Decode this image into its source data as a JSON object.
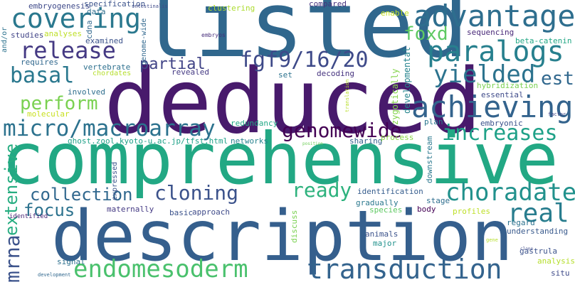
{
  "words": [
    {
      "key": "listed",
      "text": "listed",
      "color": "#30678d"
    },
    {
      "key": "deduced",
      "text": "deduced",
      "color": "#481a6c"
    },
    {
      "key": "comprehensive",
      "text": "comprehensive",
      "color": "#22a884"
    },
    {
      "key": "description",
      "text": "description",
      "color": "#355f8d"
    },
    {
      "key": "advantage",
      "text": "advantage",
      "color": "#2e6e8e"
    },
    {
      "key": "covering",
      "text": "covering",
      "color": "#2a788e"
    },
    {
      "key": "paralogs",
      "text": "paralogs",
      "color": "#27808e"
    },
    {
      "key": "release",
      "text": "release",
      "color": "#443983"
    },
    {
      "key": "fgf9-16-20",
      "text": "fgf9/16/20",
      "color": "#3e4a89"
    },
    {
      "key": "foxd",
      "text": "foxd",
      "color": "#5ec962"
    },
    {
      "key": "yielded",
      "text": "yielded",
      "color": "#2c738e"
    },
    {
      "key": "basal",
      "text": "basal",
      "color": "#2a788e"
    },
    {
      "key": "partial",
      "text": "partial",
      "color": "#414487"
    },
    {
      "key": "est",
      "text": "est",
      "color": "#31688e"
    },
    {
      "key": "achieving",
      "text": "achieving",
      "color": "#33638d"
    },
    {
      "key": "perform",
      "text": "perform",
      "color": "#7ad151"
    },
    {
      "key": "micro-macroarray",
      "text": "micro/macroarray",
      "color": "#2c728e"
    },
    {
      "key": "genomewide",
      "text": "genomewide",
      "color": "#440154"
    },
    {
      "key": "increases",
      "text": "increases",
      "color": "#1fa188"
    },
    {
      "key": "cloning",
      "text": "cloning",
      "color": "#3b528b"
    },
    {
      "key": "ready",
      "text": "ready",
      "color": "#2db27d"
    },
    {
      "key": "choradate",
      "text": "choradate",
      "color": "#21918c"
    },
    {
      "key": "collection",
      "text": "collection",
      "color": "#31688e"
    },
    {
      "key": "focus",
      "text": "focus",
      "color": "#2c728e"
    },
    {
      "key": "real",
      "text": "real",
      "color": "#287d8e"
    },
    {
      "key": "endomesoderm",
      "text": "endomesoderm",
      "color": "#4ac16d"
    },
    {
      "key": "transduction",
      "text": "transduction",
      "color": "#33638d"
    },
    {
      "key": "extensive",
      "text": "extensive",
      "color": "#27ad81"
    },
    {
      "key": "mrna",
      "text": "mrna",
      "color": "#3b528b"
    },
    {
      "key": "embryogenesis",
      "text": "embryogenesis",
      "color": "#3e4989"
    },
    {
      "key": "specification",
      "text": "specification",
      "color": "#3b528b"
    },
    {
      "key": "clustering",
      "text": "clustering",
      "color": "#addc30"
    },
    {
      "key": "compared",
      "text": "compared",
      "color": "#46327e"
    },
    {
      "key": "enable",
      "text": "enable",
      "color": "#c2df23"
    },
    {
      "key": "data",
      "text": "data",
      "color": "#2e6e8e"
    },
    {
      "key": "and-or",
      "text": "and/or",
      "color": "#2c728e"
    },
    {
      "key": "studies",
      "text": "studies",
      "color": "#414487"
    },
    {
      "key": "analyses",
      "text": "analyses",
      "color": "#bddf26"
    },
    {
      "key": "cdna",
      "text": "cdna",
      "color": "#31688e"
    },
    {
      "key": "genome-wide",
      "text": "genome-wide",
      "color": "#31688e"
    },
    {
      "key": "embryos",
      "text": "embryos",
      "color": "#472d7b"
    },
    {
      "key": "sequencing",
      "text": "sequencing",
      "color": "#482878"
    },
    {
      "key": "beta-catenin",
      "text": "beta-catenin",
      "color": "#22a785"
    },
    {
      "key": "examined",
      "text": "examined",
      "color": "#3b528b"
    },
    {
      "key": "requires",
      "text": "requires",
      "color": "#31688e"
    },
    {
      "key": "vertebrate",
      "text": "vertebrate",
      "color": "#2d708e"
    },
    {
      "key": "chordates",
      "text": "chordates",
      "color": "#b5de2b"
    },
    {
      "key": "revealed",
      "text": "revealed",
      "color": "#443983"
    },
    {
      "key": "set",
      "text": "set",
      "color": "#2c728e"
    },
    {
      "key": "decoding",
      "text": "decoding",
      "color": "#46337f"
    },
    {
      "key": "developmental",
      "text": "developmental",
      "color": "#25848e"
    },
    {
      "key": "zygotically",
      "text": "zygotically",
      "color": "#84d44b"
    },
    {
      "key": "translation",
      "text": "translation",
      "color": "#b8de29"
    },
    {
      "key": "hybridization",
      "text": "hybridization",
      "color": "#7ad151"
    },
    {
      "key": "essential",
      "text": "essential",
      "color": "#3e4a89"
    },
    {
      "key": "involved",
      "text": "involved",
      "color": "#2e6e8e"
    },
    {
      "key": "molecular",
      "text": "molecular",
      "color": "#c8e020"
    },
    {
      "key": "redundancy",
      "text": "redundancy",
      "color": "#22a785"
    },
    {
      "key": "embryonic",
      "text": "embryonic",
      "color": "#3b528b"
    },
    {
      "key": "factor",
      "text": "factor",
      "color": "#404588"
    },
    {
      "key": "ghost-url",
      "text": "ghost.zool.kyoto-u.ac.jp/tfst.html",
      "color": "#1fa188"
    },
    {
      "key": "networks",
      "text": "networks",
      "color": "#26828e"
    },
    {
      "key": "sharing",
      "text": "sharing",
      "color": "#34618d"
    },
    {
      "key": "process",
      "text": "process",
      "color": "#8bd646"
    },
    {
      "key": "position",
      "text": "position",
      "color": "#6ece58"
    },
    {
      "key": "plan",
      "text": "plan",
      "color": "#2a788e"
    },
    {
      "key": "downstream",
      "text": "downstream",
      "color": "#2a788e"
    },
    {
      "key": "expressed",
      "text": "expressed",
      "color": "#3b528b"
    },
    {
      "key": "identification",
      "text": "identification",
      "color": "#365d8d"
    },
    {
      "key": "stage",
      "text": "stage",
      "color": "#2e6e8e"
    },
    {
      "key": "gradually",
      "text": "gradually",
      "color": "#2a788e"
    },
    {
      "key": "profiles",
      "text": "profiles",
      "color": "#bddf26"
    },
    {
      "key": "maternally",
      "text": "maternally",
      "color": "#443983"
    },
    {
      "key": "basic",
      "text": "basic",
      "color": "#3b528b"
    },
    {
      "key": "approach",
      "text": "approach",
      "color": "#3e4a89"
    },
    {
      "key": "species",
      "text": "species",
      "color": "#5ec962"
    },
    {
      "key": "body",
      "text": "body",
      "color": "#440154"
    },
    {
      "key": "identified",
      "text": "identified",
      "color": "#482576"
    },
    {
      "key": "discuss",
      "text": "discuss",
      "color": "#7ad151"
    },
    {
      "key": "understanding",
      "text": "understanding",
      "color": "#38598c"
    },
    {
      "key": "regard",
      "text": "regard",
      "color": "#2c728e"
    },
    {
      "key": "animals",
      "text": "animals",
      "color": "#3b528b"
    },
    {
      "key": "major",
      "text": "major",
      "color": "#21918c"
    },
    {
      "key": "gene",
      "text": "gene",
      "color": "#b5de2b"
    },
    {
      "key": "gastrula",
      "text": "gastrula",
      "color": "#3b528b"
    },
    {
      "key": "signal",
      "text": "signal",
      "color": "#2d708e"
    },
    {
      "key": "clone",
      "text": "clone",
      "color": "#3e4a89"
    },
    {
      "key": "analysis",
      "text": "analysis",
      "color": "#b5de2b"
    },
    {
      "key": "development",
      "text": "development",
      "color": "#31688e"
    },
    {
      "key": "intestinalis",
      "text": "intestinalis",
      "color": "#3e4a89"
    },
    {
      "key": "situ",
      "text": "situ",
      "color": "#3e4a89"
    }
  ]
}
